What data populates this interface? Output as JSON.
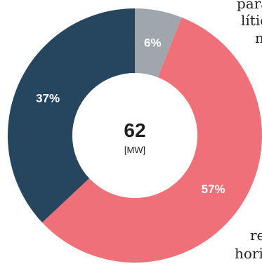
{
  "chart_data": {
    "type": "pie",
    "style": "donut",
    "categories": [
      "",
      "",
      ""
    ],
    "values": [
      6,
      57,
      37
    ],
    "labels": [
      "6%",
      "57%",
      "37%"
    ],
    "colors": [
      "#a0a7ac",
      "#f07079",
      "#26465f"
    ],
    "center": {
      "value": "62",
      "unit": "[MW]"
    }
  },
  "page_fragments": {
    "top_lines": [
      "para",
      "lític",
      "n"
    ],
    "bottom_lines": [
      "re",
      "hori"
    ]
  }
}
